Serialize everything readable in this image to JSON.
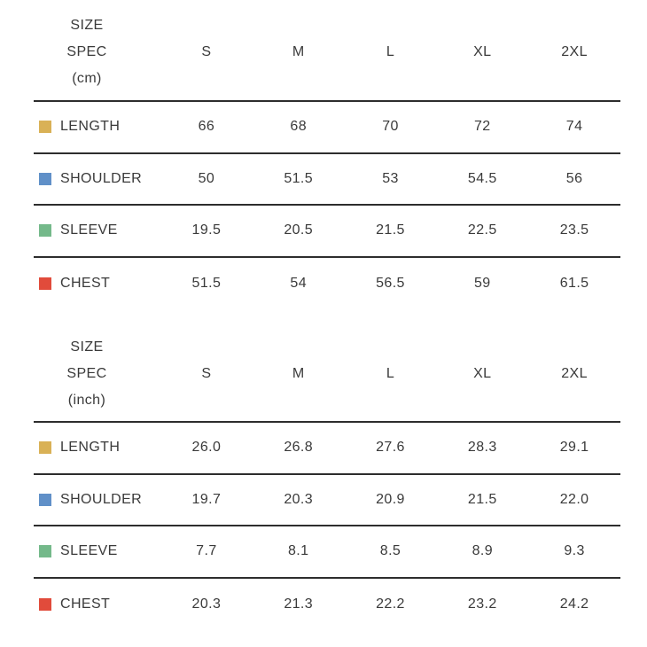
{
  "colors": {
    "text": "#3a3a3a",
    "divider": "#2d2d2d",
    "length_swatch": "#d9b156",
    "shoulder_swatch": "#6090c8",
    "sleeve_swatch": "#74b98a",
    "chest_swatch": "#e14b3b"
  },
  "chart_data": [
    {
      "type": "table",
      "title_lines": [
        "SIZE",
        "SPEC",
        "(cm)"
      ],
      "unit": "cm",
      "columns": [
        "S",
        "M",
        "L",
        "XL",
        "2XL"
      ],
      "rows": [
        {
          "label": "LENGTH",
          "swatch_color": "#d9b156",
          "values": [
            "66",
            "68",
            "70",
            "72",
            "74"
          ]
        },
        {
          "label": "SHOULDER",
          "swatch_color": "#6090c8",
          "values": [
            "50",
            "51.5",
            "53",
            "54.5",
            "56"
          ]
        },
        {
          "label": "SLEEVE",
          "swatch_color": "#74b98a",
          "values": [
            "19.5",
            "20.5",
            "21.5",
            "22.5",
            "23.5"
          ]
        },
        {
          "label": "CHEST",
          "swatch_color": "#e14b3b",
          "values": [
            "51.5",
            "54",
            "56.5",
            "59",
            "61.5"
          ]
        }
      ]
    },
    {
      "type": "table",
      "title_lines": [
        "SIZE",
        "SPEC",
        "(inch)"
      ],
      "unit": "inch",
      "columns": [
        "S",
        "M",
        "L",
        "XL",
        "2XL"
      ],
      "rows": [
        {
          "label": "LENGTH",
          "swatch_color": "#d9b156",
          "values": [
            "26.0",
            "26.8",
            "27.6",
            "28.3",
            "29.1"
          ]
        },
        {
          "label": "SHOULDER",
          "swatch_color": "#6090c8",
          "values": [
            "19.7",
            "20.3",
            "20.9",
            "21.5",
            "22.0"
          ]
        },
        {
          "label": "SLEEVE",
          "swatch_color": "#74b98a",
          "values": [
            "7.7",
            "8.1",
            "8.5",
            "8.9",
            "9.3"
          ]
        },
        {
          "label": "CHEST",
          "swatch_color": "#e14b3b",
          "values": [
            "20.3",
            "21.3",
            "22.2",
            "23.2",
            "24.2"
          ]
        }
      ]
    }
  ]
}
